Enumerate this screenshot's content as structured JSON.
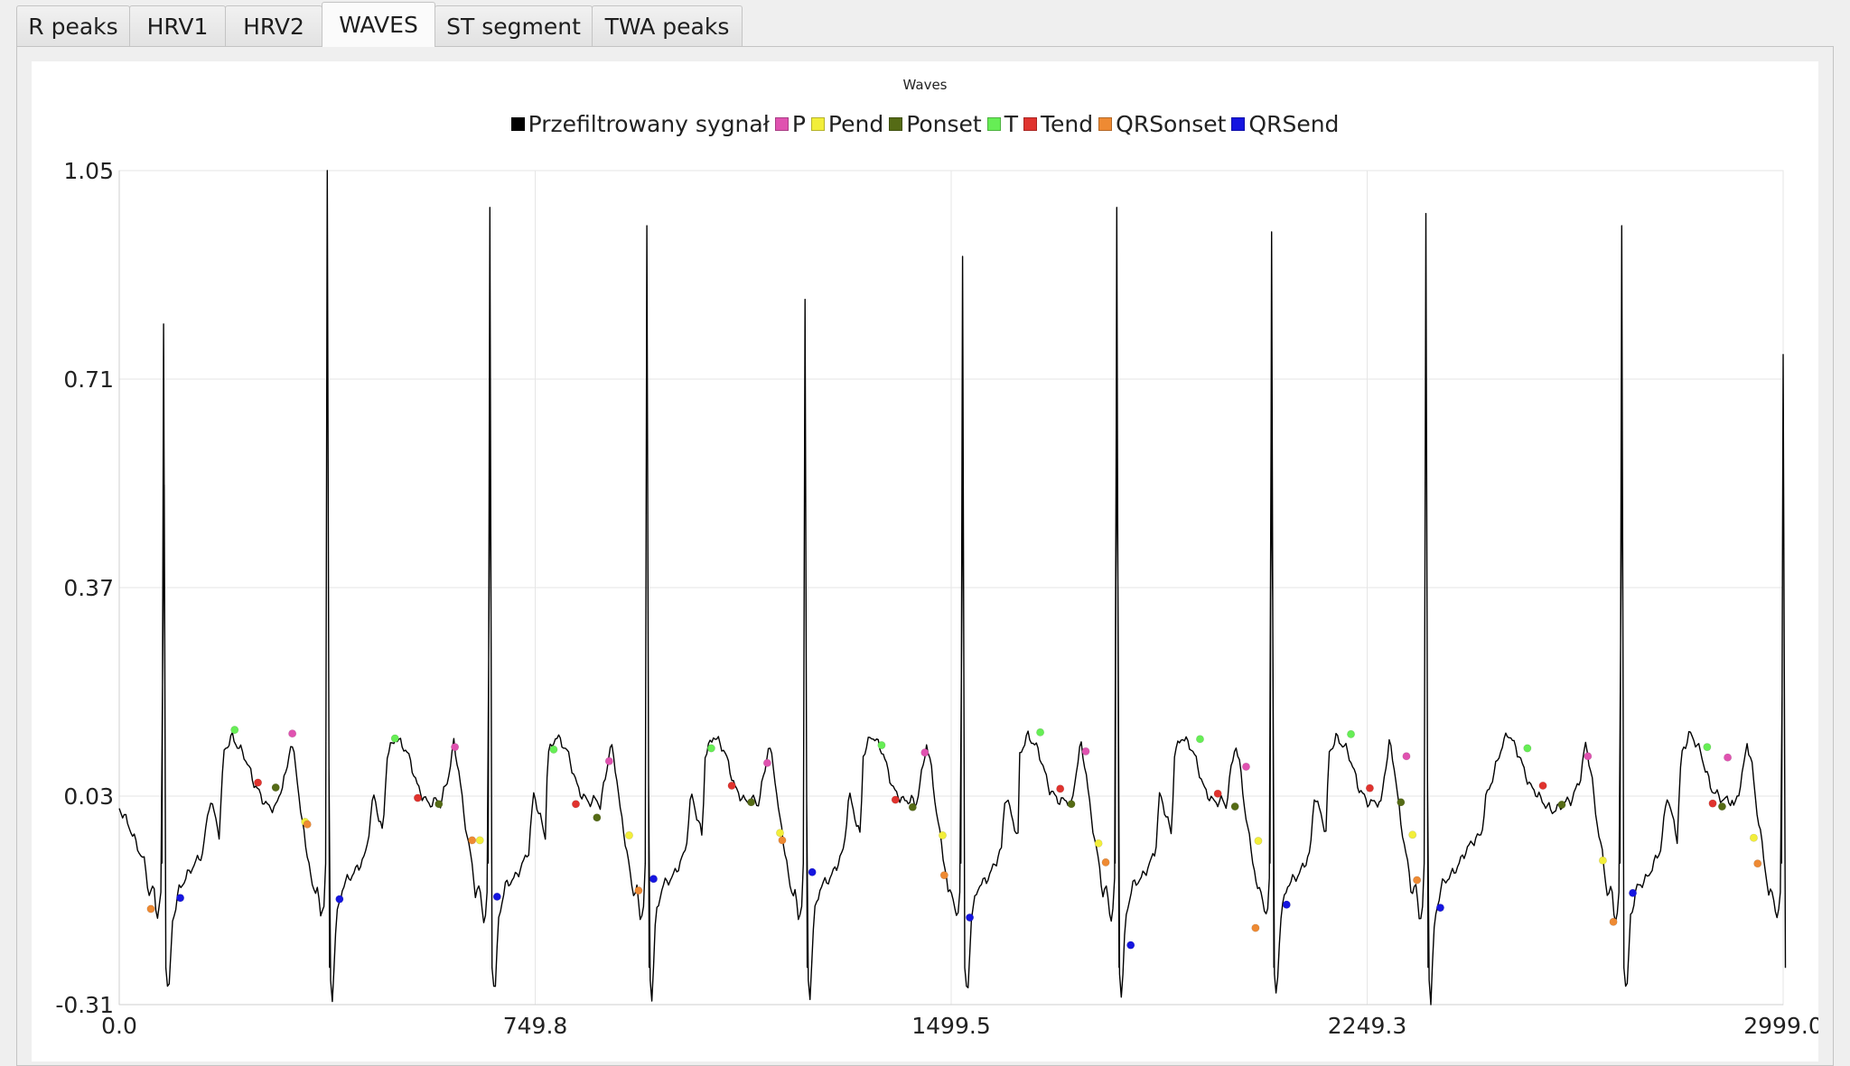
{
  "tabs": [
    {
      "label": "R peaks",
      "active": false
    },
    {
      "label": "HRV1",
      "active": false
    },
    {
      "label": "HRV2",
      "active": false
    },
    {
      "label": "WAVES",
      "active": true
    },
    {
      "label": "ST segment",
      "active": false
    },
    {
      "label": "TWA peaks",
      "active": false
    }
  ],
  "chart_data": {
    "type": "line",
    "title": "Waves",
    "xlim": [
      0.0,
      2999.0
    ],
    "ylim": [
      -0.31,
      1.05
    ],
    "x_ticks": [
      "0.0",
      "749.8",
      "1499.5",
      "2249.3",
      "2999.0"
    ],
    "y_ticks": [
      "1.05",
      "0.71",
      "0.37",
      "0.03",
      "-0.31"
    ],
    "grid": true,
    "legend_position": "top-center",
    "signal_name": "Przefiltrowany sygnał",
    "signal_color": "#000000",
    "r_peaks": [
      {
        "x": 80,
        "y": 0.8
      },
      {
        "x": 375,
        "y": 1.05
      },
      {
        "x": 668,
        "y": 0.99
      },
      {
        "x": 951,
        "y": 0.96
      },
      {
        "x": 1236,
        "y": 0.84
      },
      {
        "x": 1520,
        "y": 0.91
      },
      {
        "x": 1798,
        "y": 0.99
      },
      {
        "x": 2077,
        "y": 0.95
      },
      {
        "x": 2355,
        "y": 0.98
      },
      {
        "x": 2708,
        "y": 0.96
      },
      {
        "x": 2999,
        "y": 0.75
      }
    ],
    "series": [
      {
        "name": "P",
        "color": "#e052b0",
        "points": [
          [
            312,
            0.132
          ],
          [
            605,
            0.11
          ],
          [
            883,
            0.087
          ],
          [
            1168,
            0.084
          ],
          [
            1452,
            0.101
          ],
          [
            1742,
            0.103
          ],
          [
            2031,
            0.078
          ],
          [
            2320,
            0.095
          ],
          [
            2647,
            0.095
          ],
          [
            2899,
            0.093
          ]
        ]
      },
      {
        "name": "Pend",
        "color": "#f2ee3a",
        "points": [
          [
            335,
            -0.012
          ],
          [
            650,
            -0.042
          ],
          [
            919,
            -0.034
          ],
          [
            1191,
            -0.03
          ],
          [
            1484,
            -0.034
          ],
          [
            1765,
            -0.047
          ],
          [
            2053,
            -0.043
          ],
          [
            2331,
            -0.033
          ],
          [
            2674,
            -0.075
          ],
          [
            2946,
            -0.038
          ]
        ]
      },
      {
        "name": "Ponset",
        "color": "#556b15",
        "points": [
          [
            282,
            0.044
          ],
          [
            576,
            0.017
          ],
          [
            861,
            -0.005
          ],
          [
            1139,
            0.02
          ],
          [
            1430,
            0.012
          ],
          [
            1716,
            0.017
          ],
          [
            2011,
            0.013
          ],
          [
            2310,
            0.02
          ],
          [
            2600,
            0.016
          ],
          [
            2889,
            0.013
          ]
        ]
      },
      {
        "name": "T",
        "color": "#66ee55",
        "points": [
          [
            208,
            0.138
          ],
          [
            497,
            0.124
          ],
          [
            783,
            0.106
          ],
          [
            1067,
            0.108
          ],
          [
            1374,
            0.113
          ],
          [
            1660,
            0.134
          ],
          [
            1948,
            0.123
          ],
          [
            2220,
            0.131
          ],
          [
            2538,
            0.108
          ],
          [
            2862,
            0.11
          ]
        ]
      },
      {
        "name": "Tend",
        "color": "#e0332e",
        "points": [
          [
            250,
            0.052
          ],
          [
            538,
            0.027
          ],
          [
            823,
            0.017
          ],
          [
            1104,
            0.047
          ],
          [
            1399,
            0.024
          ],
          [
            1696,
            0.042
          ],
          [
            1980,
            0.034
          ],
          [
            2254,
            0.043
          ],
          [
            2566,
            0.047
          ],
          [
            2872,
            0.018
          ]
        ]
      },
      {
        "name": "QRSonset",
        "color": "#ee8a33",
        "points": [
          [
            57,
            -0.154
          ],
          [
            339,
            -0.016
          ],
          [
            636,
            -0.042
          ],
          [
            936,
            -0.124
          ],
          [
            1195,
            -0.042
          ],
          [
            1487,
            -0.099
          ],
          [
            1778,
            -0.078
          ],
          [
            2048,
            -0.185
          ],
          [
            2339,
            -0.107
          ],
          [
            2693,
            -0.175
          ],
          [
            2953,
            -0.08
          ]
        ]
      },
      {
        "name": "QRSend",
        "color": "#1515e0",
        "points": [
          [
            110,
            -0.136
          ],
          [
            397,
            -0.138
          ],
          [
            681,
            -0.134
          ],
          [
            963,
            -0.105
          ],
          [
            1249,
            -0.094
          ],
          [
            1533,
            -0.168
          ],
          [
            1823,
            -0.213
          ],
          [
            2104,
            -0.147
          ],
          [
            2381,
            -0.152
          ],
          [
            2728,
            -0.128
          ]
        ]
      }
    ]
  }
}
